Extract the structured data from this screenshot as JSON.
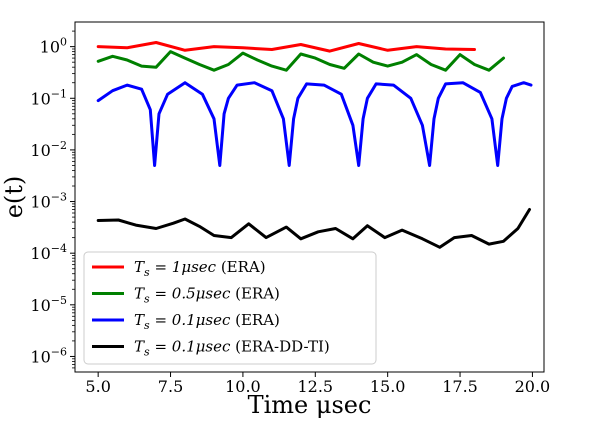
{
  "chart_data": {
    "type": "line",
    "title": "",
    "xlabel": "Time μsec",
    "ylabel": "e(t)",
    "xlim": [
      4.2,
      20.4
    ],
    "ylim": [
      5e-07,
      3
    ],
    "yscale": "log",
    "grid": false,
    "legend_position": "lower-left",
    "x_ticks": [
      5.0,
      7.5,
      10.0,
      12.5,
      15.0,
      17.5,
      20.0
    ],
    "x_tick_labels": [
      "5.0",
      "7.5",
      "10.0",
      "12.5",
      "15.0",
      "17.5",
      "20.0"
    ],
    "y_ticks": [
      1,
      0.1,
      0.01,
      0.001,
      0.0001,
      1e-05,
      1e-06
    ],
    "y_tick_labels": [
      {
        "base": "10",
        "exp": "0"
      },
      {
        "base": "10",
        "exp": "−1"
      },
      {
        "base": "10",
        "exp": "−2"
      },
      {
        "base": "10",
        "exp": "−3"
      },
      {
        "base": "10",
        "exp": "−4"
      },
      {
        "base": "10",
        "exp": "−5"
      },
      {
        "base": "10",
        "exp": "−6"
      }
    ],
    "series": [
      {
        "name": "Ts = 1μsec (ERA)",
        "legend_math": {
          "var": "T",
          "sub": "s",
          "val": " = 1μsec",
          "suffix": " (ERA)"
        },
        "color": "#ff0000",
        "x": [
          5.0,
          6.0,
          7.0,
          8.0,
          9.0,
          10.0,
          11.0,
          12.0,
          13.0,
          14.0,
          15.0,
          16.0,
          17.0,
          18.0
        ],
        "y": [
          1.0,
          0.95,
          1.2,
          0.85,
          1.0,
          0.95,
          0.88,
          1.1,
          0.82,
          1.15,
          0.85,
          1.0,
          0.9,
          0.88
        ]
      },
      {
        "name": "Ts = 0.5μsec (ERA)",
        "legend_math": {
          "var": "T",
          "sub": "s",
          "val": " = 0.5μsec",
          "suffix": " (ERA)"
        },
        "color": "#008000",
        "x": [
          5.0,
          5.5,
          6.0,
          6.5,
          7.0,
          7.5,
          8.0,
          8.5,
          9.0,
          9.5,
          10.0,
          10.5,
          11.0,
          11.5,
          12.0,
          12.5,
          13.0,
          13.5,
          14.0,
          14.5,
          15.0,
          15.5,
          16.0,
          16.5,
          17.0,
          17.5,
          18.0,
          18.5,
          19.0
        ],
        "y": [
          0.52,
          0.65,
          0.55,
          0.42,
          0.4,
          0.8,
          0.6,
          0.45,
          0.35,
          0.45,
          0.75,
          0.55,
          0.42,
          0.35,
          0.72,
          0.6,
          0.45,
          0.38,
          0.72,
          0.5,
          0.42,
          0.5,
          0.7,
          0.45,
          0.35,
          0.7,
          0.45,
          0.35,
          0.6
        ]
      },
      {
        "name": "Ts = 0.1μsec (ERA)",
        "legend_math": {
          "var": "T",
          "sub": "s",
          "val": " = 0.1μsec",
          "suffix": " (ERA)"
        },
        "color": "#0000ff",
        "x": [
          5.0,
          5.5,
          6.0,
          6.5,
          6.8,
          6.95,
          7.1,
          7.4,
          8.0,
          8.6,
          9.0,
          9.2,
          9.35,
          9.5,
          9.8,
          10.4,
          11.0,
          11.4,
          11.6,
          11.75,
          11.9,
          12.2,
          12.8,
          13.4,
          13.8,
          14.0,
          14.15,
          14.3,
          14.6,
          15.2,
          15.8,
          16.2,
          16.45,
          16.6,
          16.75,
          17.0,
          17.6,
          18.2,
          18.6,
          18.8,
          18.95,
          19.1,
          19.3,
          19.7,
          19.95
        ],
        "y": [
          0.09,
          0.14,
          0.18,
          0.15,
          0.06,
          0.005,
          0.05,
          0.12,
          0.2,
          0.12,
          0.04,
          0.005,
          0.05,
          0.1,
          0.18,
          0.2,
          0.14,
          0.04,
          0.005,
          0.04,
          0.1,
          0.19,
          0.18,
          0.12,
          0.03,
          0.005,
          0.04,
          0.1,
          0.19,
          0.18,
          0.1,
          0.03,
          0.005,
          0.04,
          0.1,
          0.19,
          0.2,
          0.13,
          0.04,
          0.005,
          0.04,
          0.1,
          0.17,
          0.2,
          0.18
        ]
      },
      {
        "name": "Ts = 0.1μsec (ERA-DD-TI)",
        "legend_math": {
          "var": "T",
          "sub": "s",
          "val": " = 0.1μsec",
          "suffix": " (ERA-DD-TI)"
        },
        "color": "#000000",
        "x": [
          5.0,
          5.7,
          6.3,
          7.0,
          7.6,
          8.0,
          8.5,
          9.0,
          9.6,
          10.2,
          10.8,
          11.5,
          12.0,
          12.6,
          13.2,
          13.8,
          14.3,
          14.9,
          15.5,
          16.2,
          16.8,
          17.3,
          17.9,
          18.5,
          19.0,
          19.5,
          19.9
        ],
        "y": [
          0.00043,
          0.00044,
          0.00035,
          0.0003,
          0.00038,
          0.00046,
          0.00033,
          0.00022,
          0.0002,
          0.00037,
          0.0002,
          0.00032,
          0.00019,
          0.00026,
          0.0003,
          0.00019,
          0.00034,
          0.0002,
          0.00028,
          0.00019,
          0.00013,
          0.0002,
          0.00022,
          0.00015,
          0.00017,
          0.0003,
          0.0007
        ]
      }
    ]
  }
}
